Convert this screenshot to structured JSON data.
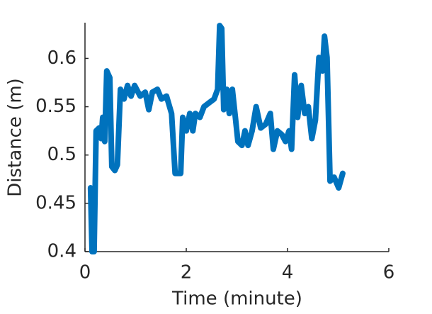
{
  "chart_data": {
    "type": "line",
    "x_label": "Time (minute)",
    "y_label": "Distance (m)",
    "xlim": [
      0,
      6
    ],
    "xticks": [
      0,
      2,
      4,
      6
    ],
    "ylim": [
      0.4,
      0.637
    ],
    "yticks": [
      0.4,
      0.45,
      0.5,
      0.55,
      0.6
    ],
    "series": [
      {
        "color": "#0072bd",
        "x": [
          0.11,
          0.14,
          0.18,
          0.22,
          0.28,
          0.32,
          0.35,
          0.39,
          0.43,
          0.49,
          0.53,
          0.59,
          0.64,
          0.7,
          0.77,
          0.84,
          0.91,
          0.98,
          1.09,
          1.19,
          1.26,
          1.33,
          1.43,
          1.51,
          1.61,
          1.71,
          1.78,
          1.89,
          1.93,
          2.0,
          2.07,
          2.13,
          2.18,
          2.27,
          2.35,
          2.45,
          2.55,
          2.62,
          2.66,
          2.7,
          2.74,
          2.8,
          2.85,
          2.91,
          2.97,
          3.02,
          3.1,
          3.16,
          3.22,
          3.3,
          3.38,
          3.47,
          3.57,
          3.66,
          3.72,
          3.8,
          3.89,
          3.96,
          4.03,
          4.08,
          4.14,
          4.2,
          4.27,
          4.34,
          4.41,
          4.48,
          4.55,
          4.62,
          4.69,
          4.73,
          4.78,
          4.84,
          4.92,
          5.01,
          5.09
        ],
        "values": [
          0.466,
          0.4,
          0.4,
          0.525,
          0.528,
          0.517,
          0.539,
          0.514,
          0.587,
          0.58,
          0.488,
          0.484,
          0.49,
          0.568,
          0.558,
          0.572,
          0.561,
          0.572,
          0.561,
          0.565,
          0.547,
          0.565,
          0.568,
          0.558,
          0.561,
          0.543,
          0.481,
          0.481,
          0.539,
          0.525,
          0.543,
          0.525,
          0.543,
          0.539,
          0.55,
          0.554,
          0.558,
          0.568,
          0.634,
          0.631,
          0.547,
          0.568,
          0.543,
          0.568,
          0.539,
          0.514,
          0.51,
          0.525,
          0.51,
          0.525,
          0.55,
          0.528,
          0.532,
          0.543,
          0.506,
          0.525,
          0.521,
          0.514,
          0.525,
          0.506,
          0.583,
          0.539,
          0.572,
          0.543,
          0.55,
          0.517,
          0.536,
          0.601,
          0.587,
          0.623,
          0.601,
          0.473,
          0.477,
          0.466,
          0.481
        ]
      }
    ]
  }
}
